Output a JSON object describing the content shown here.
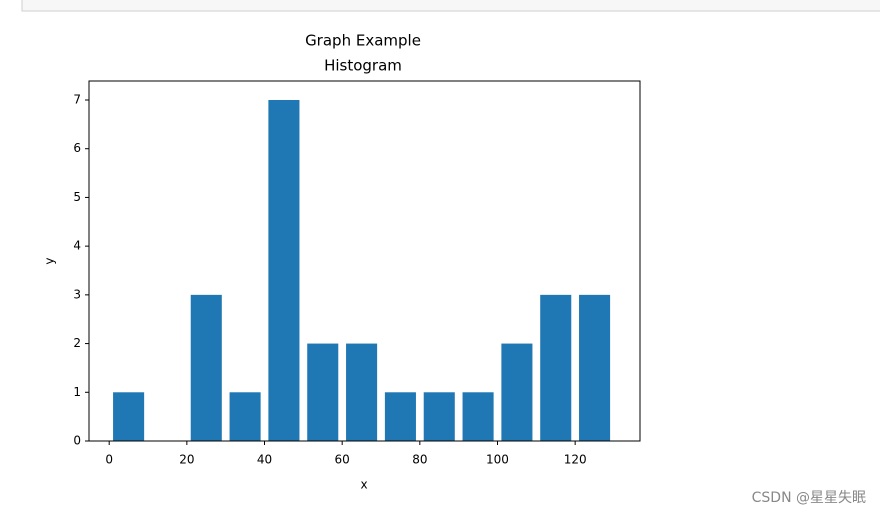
{
  "chart_data": {
    "type": "histogram",
    "title": "Graph Example",
    "subtitle": "Histogram",
    "x_label": "x",
    "y_label": "y",
    "bins": [
      0,
      10,
      20,
      30,
      40,
      50,
      60,
      70,
      80,
      90,
      100,
      110,
      120,
      130
    ],
    "values": [
      1,
      0,
      3,
      1,
      7,
      2,
      2,
      1,
      1,
      1,
      2,
      3,
      3
    ],
    "color": "#1f77b4",
    "xlim": [
      -5.2,
      136.7
    ],
    "xticks": [
      0,
      20,
      40,
      60,
      80,
      100,
      120
    ],
    "ylim": [
      0,
      7.39
    ],
    "yticks": [
      0,
      1,
      2,
      3,
      4,
      5,
      6,
      7
    ]
  },
  "watermark": "CSDN @星星失眠"
}
